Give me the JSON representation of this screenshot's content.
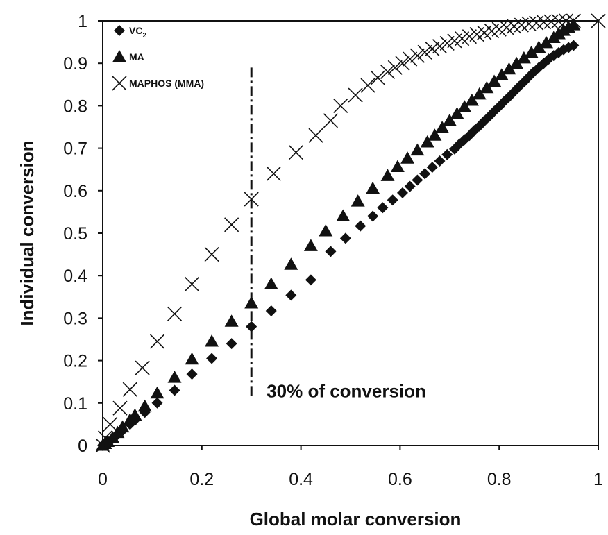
{
  "chart_data": {
    "type": "scatter",
    "title": "",
    "xlabel": "Global molar conversion",
    "ylabel": "Individual conversion",
    "xlim": [
      0,
      1
    ],
    "ylim": [
      0,
      1
    ],
    "xticks": [
      "0",
      "0.2",
      "0.4",
      "0.6",
      "0.8",
      "1"
    ],
    "yticks": [
      "0",
      "0.1",
      "0.2",
      "0.3",
      "0.4",
      "0.5",
      "0.6",
      "0.7",
      "0.8",
      "0.9",
      "1"
    ],
    "grid": false,
    "legend_position": "top-left",
    "legend": [
      {
        "label": "VC",
        "subscript": "2",
        "marker": "diamond"
      },
      {
        "label": "MA",
        "marker": "triangle"
      },
      {
        "label": "MAPHOS (MMA)",
        "marker": "cross"
      }
    ],
    "annotation": {
      "text": "30% of conversion",
      "x": 0.3,
      "y_range": [
        0.11,
        0.89
      ]
    },
    "series": [
      {
        "name": "VC2",
        "marker": "diamond",
        "points": [
          [
            0.0,
            0.0
          ],
          [
            0.005,
            0.003
          ],
          [
            0.01,
            0.008
          ],
          [
            0.02,
            0.016
          ],
          [
            0.03,
            0.026
          ],
          [
            0.04,
            0.035
          ],
          [
            0.055,
            0.05
          ],
          [
            0.065,
            0.06
          ],
          [
            0.085,
            0.078
          ],
          [
            0.11,
            0.1
          ],
          [
            0.145,
            0.13
          ],
          [
            0.18,
            0.168
          ],
          [
            0.22,
            0.205
          ],
          [
            0.26,
            0.24
          ],
          [
            0.3,
            0.28
          ],
          [
            0.34,
            0.317
          ],
          [
            0.38,
            0.354
          ],
          [
            0.42,
            0.39
          ],
          [
            0.46,
            0.457
          ],
          [
            0.49,
            0.488
          ],
          [
            0.52,
            0.517
          ],
          [
            0.545,
            0.54
          ],
          [
            0.565,
            0.56
          ],
          [
            0.585,
            0.578
          ],
          [
            0.605,
            0.595
          ],
          [
            0.62,
            0.61
          ],
          [
            0.635,
            0.625
          ],
          [
            0.65,
            0.64
          ],
          [
            0.665,
            0.655
          ],
          [
            0.68,
            0.67
          ],
          [
            0.695,
            0.685
          ],
          [
            0.71,
            0.698
          ],
          [
            0.72,
            0.71
          ],
          [
            0.73,
            0.72
          ],
          [
            0.74,
            0.73
          ],
          [
            0.75,
            0.742
          ],
          [
            0.76,
            0.752
          ],
          [
            0.77,
            0.764
          ],
          [
            0.78,
            0.775
          ],
          [
            0.79,
            0.787
          ],
          [
            0.8,
            0.798
          ],
          [
            0.81,
            0.81
          ],
          [
            0.82,
            0.821
          ],
          [
            0.83,
            0.833
          ],
          [
            0.84,
            0.845
          ],
          [
            0.85,
            0.856
          ],
          [
            0.86,
            0.868
          ],
          [
            0.87,
            0.88
          ],
          [
            0.88,
            0.89
          ],
          [
            0.89,
            0.9
          ],
          [
            0.9,
            0.91
          ],
          [
            0.91,
            0.918
          ],
          [
            0.92,
            0.925
          ],
          [
            0.93,
            0.932
          ],
          [
            0.94,
            0.937
          ],
          [
            0.95,
            0.942
          ]
        ]
      },
      {
        "name": "MA",
        "marker": "triangle",
        "points": [
          [
            0.0,
            0.0
          ],
          [
            0.005,
            0.004
          ],
          [
            0.01,
            0.009
          ],
          [
            0.02,
            0.018
          ],
          [
            0.03,
            0.03
          ],
          [
            0.04,
            0.043
          ],
          [
            0.055,
            0.06
          ],
          [
            0.065,
            0.071
          ],
          [
            0.085,
            0.092
          ],
          [
            0.11,
            0.123
          ],
          [
            0.145,
            0.16
          ],
          [
            0.18,
            0.203
          ],
          [
            0.22,
            0.245
          ],
          [
            0.26,
            0.292
          ],
          [
            0.3,
            0.335
          ],
          [
            0.34,
            0.38
          ],
          [
            0.38,
            0.426
          ],
          [
            0.42,
            0.47
          ],
          [
            0.45,
            0.505
          ],
          [
            0.485,
            0.54
          ],
          [
            0.515,
            0.575
          ],
          [
            0.545,
            0.605
          ],
          [
            0.575,
            0.635
          ],
          [
            0.595,
            0.656
          ],
          [
            0.615,
            0.676
          ],
          [
            0.635,
            0.695
          ],
          [
            0.655,
            0.714
          ],
          [
            0.67,
            0.73
          ],
          [
            0.685,
            0.748
          ],
          [
            0.7,
            0.765
          ],
          [
            0.715,
            0.781
          ],
          [
            0.73,
            0.797
          ],
          [
            0.745,
            0.812
          ],
          [
            0.76,
            0.827
          ],
          [
            0.775,
            0.842
          ],
          [
            0.79,
            0.857
          ],
          [
            0.805,
            0.872
          ],
          [
            0.82,
            0.886
          ],
          [
            0.835,
            0.899
          ],
          [
            0.85,
            0.912
          ],
          [
            0.865,
            0.925
          ],
          [
            0.88,
            0.937
          ],
          [
            0.895,
            0.948
          ],
          [
            0.91,
            0.96
          ],
          [
            0.92,
            0.969
          ],
          [
            0.93,
            0.977
          ],
          [
            0.94,
            0.984
          ],
          [
            0.95,
            0.99
          ]
        ]
      },
      {
        "name": "MAPHOS (MMA)",
        "marker": "cross",
        "points": [
          [
            0.0,
            0.0
          ],
          [
            0.005,
            0.018
          ],
          [
            0.015,
            0.05
          ],
          [
            0.035,
            0.088
          ],
          [
            0.055,
            0.132
          ],
          [
            0.08,
            0.183
          ],
          [
            0.11,
            0.245
          ],
          [
            0.145,
            0.31
          ],
          [
            0.18,
            0.38
          ],
          [
            0.22,
            0.45
          ],
          [
            0.26,
            0.52
          ],
          [
            0.3,
            0.58
          ],
          [
            0.345,
            0.64
          ],
          [
            0.39,
            0.69
          ],
          [
            0.43,
            0.73
          ],
          [
            0.46,
            0.765
          ],
          [
            0.48,
            0.8
          ],
          [
            0.51,
            0.825
          ],
          [
            0.535,
            0.848
          ],
          [
            0.555,
            0.866
          ],
          [
            0.575,
            0.88
          ],
          [
            0.59,
            0.89
          ],
          [
            0.605,
            0.9
          ],
          [
            0.62,
            0.91
          ],
          [
            0.635,
            0.918
          ],
          [
            0.65,
            0.926
          ],
          [
            0.665,
            0.934
          ],
          [
            0.68,
            0.94
          ],
          [
            0.695,
            0.947
          ],
          [
            0.71,
            0.953
          ],
          [
            0.725,
            0.958
          ],
          [
            0.74,
            0.963
          ],
          [
            0.755,
            0.968
          ],
          [
            0.77,
            0.972
          ],
          [
            0.785,
            0.976
          ],
          [
            0.8,
            0.98
          ],
          [
            0.815,
            0.984
          ],
          [
            0.83,
            0.987
          ],
          [
            0.845,
            0.99
          ],
          [
            0.86,
            0.993
          ],
          [
            0.875,
            0.995
          ],
          [
            0.89,
            0.997
          ],
          [
            0.905,
            0.998
          ],
          [
            0.92,
            0.999
          ],
          [
            0.935,
            1.0
          ],
          [
            0.95,
            1.0
          ],
          [
            1.0,
            1.0
          ]
        ]
      }
    ]
  }
}
